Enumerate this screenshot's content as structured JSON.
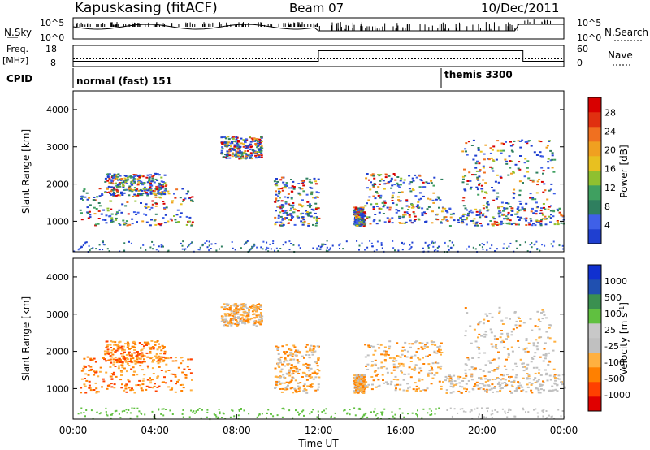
{
  "header": {
    "station": "Kapuskasing (fitACF)",
    "beam": "Beam 07",
    "date": "10/Dec/2011"
  },
  "left_labels": {
    "nsky": "N.Sky",
    "freq": "Freq.",
    "freq_unit": "[MHz]",
    "cpid": "CPID"
  },
  "right_labels": {
    "nsearch": "N.Search",
    "nave": "Nave"
  },
  "cpid_labels": [
    {
      "text": "normal (fast) 151",
      "start_hour": 0
    },
    {
      "text": "themis 3300",
      "start_hour": 18
    }
  ],
  "colors": {
    "power": [
      "#1f3fd0",
      "#3f60e8",
      "#2f7f5f",
      "#3fa060",
      "#8fc030",
      "#e8c020",
      "#f0a020",
      "#f07020",
      "#e03010",
      "#d80000"
    ],
    "velocity": [
      "#e00000",
      "#ff4000",
      "#ff8000",
      "#ffb040",
      "#c0c0c0",
      "#c8c8c8",
      "#60c040",
      "#3a9050",
      "#2050b0",
      "#1030d0"
    ]
  },
  "chart_data": [
    {
      "type": "line",
      "name": "noise-panel",
      "x_range_hours": [
        0,
        24
      ],
      "left_ticks": [
        "10^5",
        "10^0"
      ],
      "right_ticks": [
        "10^5",
        "10^0"
      ]
    },
    {
      "type": "line",
      "name": "frequency-panel",
      "left_ticks": [
        "18",
        "8"
      ],
      "right_ticks": [
        "60",
        "0"
      ],
      "frequency_mhz": [
        {
          "x": 0,
          "y": 10.5
        },
        {
          "x": 12,
          "y": 10.5
        },
        {
          "x": 12,
          "y": 15.5
        },
        {
          "x": 22,
          "y": 15.5
        },
        {
          "x": 22,
          "y": 10.5
        },
        {
          "x": 24,
          "y": 10.5
        }
      ],
      "nave_right_units": [
        {
          "x": 0,
          "y": 22
        },
        {
          "x": 24,
          "y": 22
        }
      ]
    },
    {
      "type": "heatmap",
      "name": "power",
      "xlabel": "",
      "ylabel": "Slant Range [km]",
      "x_range_hours": [
        0,
        24
      ],
      "ylim": [
        180,
        4500
      ],
      "yticks": [
        1000,
        2000,
        3000,
        4000
      ],
      "colorbar_label": "Power [dB]",
      "colorbar_ticks": [
        "4",
        "8",
        "12",
        "16",
        "20",
        "24",
        "28"
      ]
    },
    {
      "type": "heatmap",
      "name": "velocity",
      "xlabel": "Time UT",
      "ylabel": "Slant Range [km]",
      "x_range_hours": [
        0,
        24
      ],
      "ylim": [
        180,
        4500
      ],
      "yticks": [
        1000,
        2000,
        3000,
        4000
      ],
      "xticks": [
        "00:00",
        "04:00",
        "08:00",
        "12:00",
        "16:00",
        "20:00",
        "00:00"
      ],
      "colorbar_label": "Velocity [m s",
      "colorbar_label_sup": "-1",
      "colorbar_label_end": "]",
      "colorbar_ticks": [
        "-1000",
        "-500",
        "-100",
        "-25",
        "25",
        "100",
        "500",
        "1000"
      ]
    }
  ]
}
